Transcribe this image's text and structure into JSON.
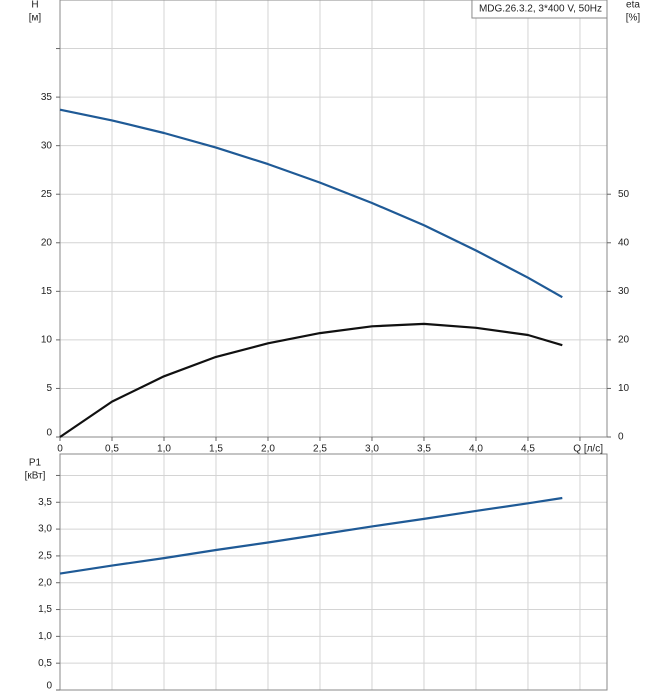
{
  "chart_data": [
    {
      "type": "line",
      "y_label": "H",
      "y_unit": "[м]",
      "y2_label": "eta",
      "y2_unit": "[%]",
      "x_label": "Q [л/с]",
      "legend_text": "MDG.26.3.2, 3*400 V, 50Hz",
      "x": [
        0,
        0.5,
        1,
        1.5,
        2,
        2.5,
        3,
        3.5,
        4,
        4.5,
        4.83
      ],
      "series": [
        {
          "color": "#1f5a96",
          "values": [
            33.7,
            32.6,
            31.3,
            29.8,
            28.1,
            26.2,
            24.1,
            21.8,
            19.2,
            16.4,
            14.4
          ]
        },
        {
          "color": "#111111",
          "axis": "y2",
          "values": [
            0,
            7.3,
            12.5,
            16.5,
            19.3,
            21.4,
            22.8,
            23.3,
            22.5,
            21.0,
            18.9
          ]
        }
      ],
      "xlim": [
        0,
        5.26
      ],
      "xticks": [
        0,
        {
          "value": 0.5,
          "label": "0,5"
        },
        {
          "value": 1,
          "label": "1,0"
        },
        {
          "value": 1.5,
          "label": "1,5"
        },
        {
          "value": 2,
          "label": "2,0"
        },
        {
          "value": 2.5,
          "label": "2,5"
        },
        {
          "value": 3,
          "label": "3,0"
        },
        {
          "value": 3.5,
          "label": "3,5"
        },
        {
          "value": 4,
          "label": "4,0"
        },
        {
          "value": 4.5,
          "label": "4,5"
        },
        {
          "value": 5,
          "label": null
        }
      ],
      "ylim": [
        0,
        45
      ],
      "yticks": [
        0,
        5,
        10,
        15,
        20,
        25,
        30,
        35,
        {
          "value": 40,
          "label": null
        }
      ],
      "y2lim": [
        0,
        90
      ],
      "y2ticks": [
        0,
        10,
        20,
        30,
        40,
        50
      ],
      "grid": true
    },
    {
      "type": "line",
      "y_label": "P1",
      "y_unit": "[кВт]",
      "x": [
        0,
        0.5,
        1,
        1.5,
        2,
        2.5,
        3,
        3.5,
        4,
        4.5,
        4.83
      ],
      "series": [
        {
          "color": "#1f5a96",
          "values": [
            2.17,
            2.32,
            2.46,
            2.61,
            2.75,
            2.9,
            3.05,
            3.19,
            3.34,
            3.48,
            3.58
          ]
        }
      ],
      "xlim": [
        0,
        5.26
      ],
      "xticks": [
        0,
        0.5,
        1,
        1.5,
        2,
        2.5,
        3,
        3.5,
        4,
        4.5,
        5
      ],
      "ylim": [
        0,
        4.4
      ],
      "yticks": [
        0,
        {
          "value": 0.5,
          "label": "0,5"
        },
        {
          "value": 1,
          "label": "1,0"
        },
        {
          "value": 1.5,
          "label": "1,5"
        },
        {
          "value": 2,
          "label": "2,0"
        },
        {
          "value": 2.5,
          "label": "2,5"
        },
        {
          "value": 3,
          "label": "3,0"
        },
        {
          "value": 3.5,
          "label": "3,5"
        },
        {
          "value": 4,
          "label": null
        }
      ],
      "grid": true
    }
  ]
}
